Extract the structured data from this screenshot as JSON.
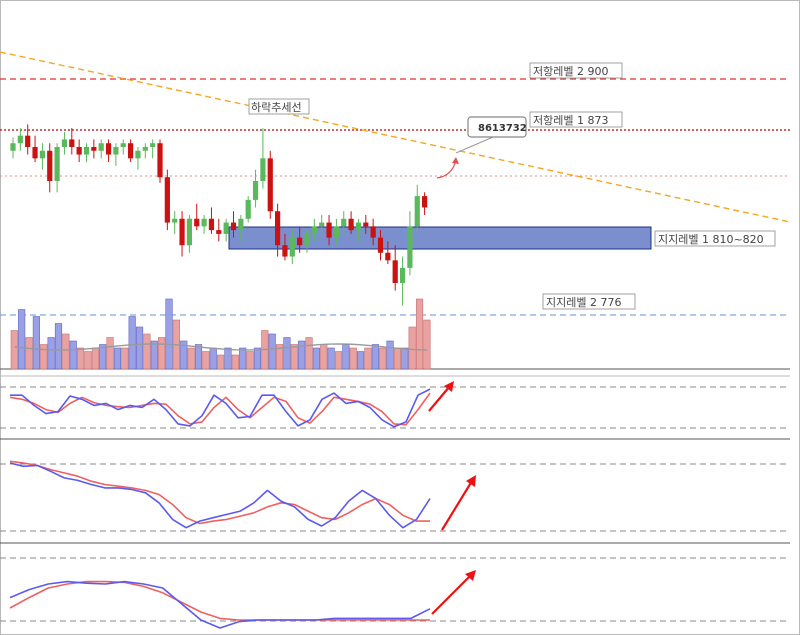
{
  "chart_data": {
    "type": "candlestick",
    "levels": {
      "resistance_2": "저항레벨 2 900",
      "resistance_1": "저항레벨 1 873",
      "support_1": "지지레벨 1 810~820",
      "support_2": "지지레벨 2 776"
    },
    "trendline_label": "하락추세선",
    "price_callout": "8613732",
    "colors": {
      "up": "#5cb85c",
      "down": "#cc1111",
      "resistance2": "#e03030",
      "resistance1": "#c00000",
      "trend": "#f5a623",
      "support_zone": "#7b8fcf",
      "support2": "#6a8fd8",
      "volume_up": "#9aa0e6",
      "volume_down": "#e8a2a2",
      "osc_fast": "#5a5af0",
      "osc_slow": "#f06060",
      "arrow": "#ee1111"
    },
    "candles": [
      [
        862,
        869,
        858,
        866
      ],
      [
        866,
        874,
        862,
        870
      ],
      [
        870,
        876,
        860,
        864
      ],
      [
        864,
        870,
        856,
        858
      ],
      [
        858,
        866,
        852,
        862
      ],
      [
        862,
        866,
        840,
        846
      ],
      [
        846,
        866,
        840,
        864
      ],
      [
        864,
        872,
        860,
        868
      ],
      [
        868,
        874,
        860,
        864
      ],
      [
        864,
        868,
        856,
        860
      ],
      [
        860,
        866,
        856,
        864
      ],
      [
        864,
        868,
        858,
        862
      ],
      [
        862,
        868,
        858,
        866
      ],
      [
        866,
        868,
        856,
        860
      ],
      [
        860,
        866,
        854,
        864
      ],
      [
        864,
        868,
        860,
        866
      ],
      [
        866,
        868,
        856,
        858
      ],
      [
        858,
        864,
        852,
        862
      ],
      [
        862,
        866,
        858,
        864
      ],
      [
        864,
        868,
        858,
        866
      ],
      [
        866,
        868,
        845,
        848
      ],
      [
        848,
        852,
        820,
        824
      ],
      [
        824,
        830,
        818,
        826
      ],
      [
        826,
        830,
        806,
        812
      ],
      [
        812,
        828,
        808,
        826
      ],
      [
        826,
        834,
        820,
        822
      ],
      [
        822,
        828,
        818,
        826
      ],
      [
        826,
        832,
        818,
        820
      ],
      [
        820,
        826,
        814,
        818
      ],
      [
        818,
        826,
        814,
        824
      ],
      [
        824,
        830,
        816,
        820
      ],
      [
        820,
        828,
        814,
        826
      ],
      [
        826,
        838,
        824,
        836
      ],
      [
        836,
        852,
        832,
        846
      ],
      [
        846,
        874,
        842,
        858
      ],
      [
        858,
        862,
        826,
        830
      ],
      [
        830,
        834,
        806,
        812
      ],
      [
        812,
        818,
        804,
        806
      ],
      [
        806,
        820,
        802,
        816
      ],
      [
        816,
        822,
        808,
        812
      ],
      [
        812,
        820,
        808,
        818
      ],
      [
        818,
        826,
        814,
        822
      ],
      [
        822,
        828,
        816,
        824
      ],
      [
        824,
        828,
        812,
        816
      ],
      [
        816,
        826,
        812,
        822
      ],
      [
        822,
        830,
        818,
        826
      ],
      [
        826,
        830,
        818,
        820
      ],
      [
        820,
        826,
        814,
        824
      ],
      [
        824,
        828,
        818,
        822
      ],
      [
        822,
        826,
        812,
        816
      ],
      [
        816,
        820,
        804,
        808
      ],
      [
        808,
        814,
        802,
        804
      ],
      [
        804,
        812,
        788,
        792
      ],
      [
        792,
        806,
        780,
        800
      ],
      [
        800,
        830,
        796,
        822
      ],
      [
        822,
        844,
        818,
        838
      ],
      [
        838,
        840,
        828,
        832
      ]
    ],
    "volume": [
      {
        "v": 0.55,
        "up": false
      },
      {
        "v": 0.85,
        "up": true
      },
      {
        "v": 0.45,
        "up": false
      },
      {
        "v": 0.75,
        "up": true
      },
      {
        "v": 0.35,
        "up": false
      },
      {
        "v": 0.45,
        "up": true
      },
      {
        "v": 0.65,
        "up": true
      },
      {
        "v": 0.5,
        "up": false
      },
      {
        "v": 0.4,
        "up": true
      },
      {
        "v": 0.3,
        "up": false
      },
      {
        "v": 0.25,
        "up": false
      },
      {
        "v": 0.3,
        "up": false
      },
      {
        "v": 0.35,
        "up": true
      },
      {
        "v": 0.45,
        "up": false
      },
      {
        "v": 0.3,
        "up": true
      },
      {
        "v": 0.3,
        "up": false
      },
      {
        "v": 0.75,
        "up": true
      },
      {
        "v": 0.6,
        "up": true
      },
      {
        "v": 0.5,
        "up": false
      },
      {
        "v": 0.4,
        "up": true
      },
      {
        "v": 0.45,
        "up": false
      },
      {
        "v": 1.0,
        "up": true
      },
      {
        "v": 0.7,
        "up": false
      },
      {
        "v": 0.4,
        "up": true
      },
      {
        "v": 0.3,
        "up": false
      },
      {
        "v": 0.35,
        "up": true
      },
      {
        "v": 0.25,
        "up": false
      },
      {
        "v": 0.3,
        "up": true
      },
      {
        "v": 0.2,
        "up": false
      },
      {
        "v": 0.3,
        "up": true
      },
      {
        "v": 0.2,
        "up": false
      },
      {
        "v": 0.3,
        "up": true
      },
      {
        "v": 0.25,
        "up": false
      },
      {
        "v": 0.3,
        "up": true
      },
      {
        "v": 0.55,
        "up": false
      },
      {
        "v": 0.5,
        "up": true
      },
      {
        "v": 0.35,
        "up": false
      },
      {
        "v": 0.45,
        "up": true
      },
      {
        "v": 0.35,
        "up": false
      },
      {
        "v": 0.4,
        "up": true
      },
      {
        "v": 0.45,
        "up": false
      },
      {
        "v": 0.3,
        "up": true
      },
      {
        "v": 0.35,
        "up": false
      },
      {
        "v": 0.3,
        "up": true
      },
      {
        "v": 0.25,
        "up": false
      },
      {
        "v": 0.35,
        "up": true
      },
      {
        "v": 0.3,
        "up": false
      },
      {
        "v": 0.25,
        "up": true
      },
      {
        "v": 0.3,
        "up": false
      },
      {
        "v": 0.35,
        "up": true
      },
      {
        "v": 0.3,
        "up": false
      },
      {
        "v": 0.4,
        "up": true
      },
      {
        "v": 0.3,
        "up": false
      },
      {
        "v": 0.3,
        "up": true
      },
      {
        "v": 0.6,
        "up": false
      },
      {
        "v": 1.0,
        "up": false
      },
      {
        "v": 0.7,
        "up": false
      }
    ],
    "oscillators": [
      {
        "fast": [
          80,
          80,
          55,
          35,
          40,
          78,
          70,
          55,
          60,
          45,
          55,
          50,
          70,
          45,
          10,
          5,
          30,
          80,
          60,
          25,
          28,
          80,
          80,
          40,
          5,
          20,
          70,
          85,
          60,
          65,
          50,
          20,
          3,
          15,
          80,
          95
        ],
        "slow": [
          75,
          70,
          60,
          45,
          38,
          60,
          75,
          62,
          55,
          52,
          50,
          55,
          60,
          58,
          30,
          10,
          15,
          50,
          75,
          45,
          25,
          50,
          75,
          65,
          25,
          12,
          40,
          75,
          70,
          65,
          58,
          40,
          10,
          8,
          45,
          85
        ]
      },
      {
        "fast": [
          88,
          84,
          85,
          78,
          70,
          67,
          62,
          58,
          58,
          56,
          52,
          40,
          20,
          10,
          18,
          22,
          26,
          30,
          40,
          55,
          42,
          35,
          20,
          12,
          22,
          42,
          55,
          45,
          25,
          10,
          20,
          45
        ],
        "slow": [
          90,
          88,
          85,
          80,
          76,
          72,
          66,
          62,
          60,
          58,
          55,
          50,
          38,
          22,
          15,
          18,
          20,
          24,
          28,
          35,
          40,
          38,
          30,
          22,
          20,
          28,
          38,
          45,
          38,
          25,
          18,
          18
        ]
      },
      {
        "fast": [
          38,
          48,
          55,
          58,
          56,
          55,
          58,
          55,
          50,
          30,
          10,
          0,
          8,
          10,
          10,
          10,
          10,
          12,
          12,
          12,
          12,
          12,
          24
        ],
        "slow": [
          25,
          38,
          50,
          55,
          58,
          58,
          57,
          52,
          44,
          32,
          20,
          12,
          10,
          10,
          10,
          10,
          10,
          10,
          10,
          10,
          10,
          10,
          10
        ]
      }
    ]
  }
}
